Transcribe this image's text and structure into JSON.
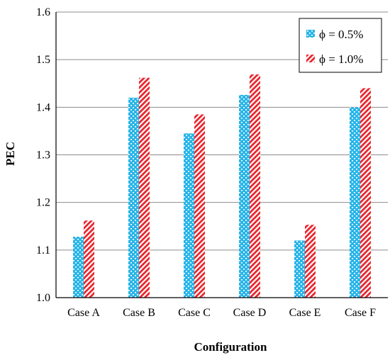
{
  "chart_data": {
    "type": "bar",
    "title": "",
    "xlabel": "Configuration",
    "ylabel": "PEC",
    "categories": [
      "Case A",
      "Case B",
      "Case C",
      "Case D",
      "Case E",
      "Case F"
    ],
    "series": [
      {
        "name": "ϕ = 0.5%",
        "values": [
          1.128,
          1.42,
          1.345,
          1.426,
          1.12,
          1.4
        ],
        "color": "#29B5E8",
        "pattern": "dotted-blue"
      },
      {
        "name": "ϕ = 1.0%",
        "values": [
          1.162,
          1.462,
          1.385,
          1.469,
          1.153,
          1.44
        ],
        "color": "#E8262E",
        "pattern": "diagonal-red"
      }
    ],
    "ylim": [
      1.0,
      1.6
    ],
    "yticks": [
      "1.0",
      "1.1",
      "1.2",
      "1.3",
      "1.4",
      "1.5",
      "1.6"
    ],
    "grid": true,
    "legend_position": "top-right"
  }
}
